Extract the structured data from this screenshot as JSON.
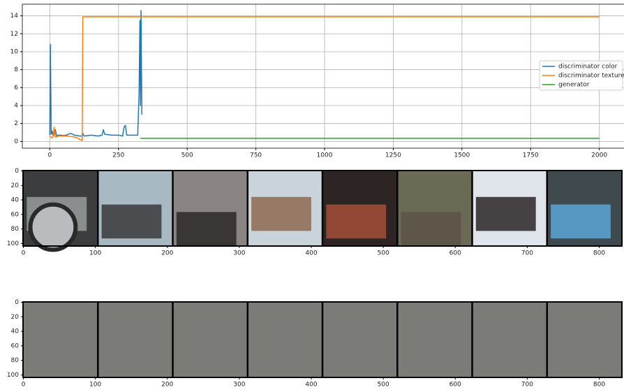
{
  "chart_data": [
    {
      "type": "line",
      "x": [
        0,
        2,
        5,
        8,
        12,
        16,
        20,
        25,
        30,
        40,
        50,
        60,
        75,
        90,
        100,
        110,
        118,
        120,
        125,
        150,
        175,
        190,
        195,
        200,
        225,
        250,
        265,
        270,
        275,
        280,
        300,
        320,
        325,
        328,
        330,
        332,
        335,
        340,
        500,
        1000,
        1500,
        2000
      ],
      "series": [
        {
          "name": "discriminator color",
          "color": "#1f77b4",
          "values": [
            0.7,
            10.8,
            0.8,
            1.2,
            0.6,
            0.9,
            1.3,
            0.6,
            0.7,
            0.7,
            0.65,
            0.7,
            0.9,
            0.7,
            0.65,
            0.6,
            0.6,
            0.9,
            0.6,
            0.7,
            0.6,
            0.7,
            1.3,
            0.8,
            0.7,
            0.7,
            0.6,
            1.6,
            1.8,
            0.7,
            0.7,
            0.7,
            5.5,
            13.5,
            4,
            14.6,
            3,
            null,
            null,
            null,
            null,
            null
          ]
        },
        {
          "name": "discriminator texture",
          "color": "#ff7f0e",
          "values": [
            0.6,
            0.5,
            0.5,
            0.4,
            0.5,
            1.6,
            0.5,
            0.5,
            0.6,
            0.6,
            0.6,
            0.6,
            0.55,
            0.5,
            0.4,
            0.2,
            0.1,
            13.9,
            13.9,
            13.9,
            13.9,
            13.9,
            13.9,
            13.9,
            13.9,
            13.9,
            13.9,
            13.9,
            13.9,
            13.9,
            13.9,
            13.9,
            13.9,
            13.9,
            13.9,
            13.9,
            13.9,
            13.9,
            13.9,
            13.9,
            13.9,
            13.9
          ]
        },
        {
          "name": "generator",
          "color": "#2ca02c",
          "values": [
            null,
            null,
            null,
            null,
            null,
            null,
            null,
            null,
            null,
            null,
            null,
            null,
            null,
            null,
            null,
            null,
            null,
            null,
            null,
            null,
            null,
            null,
            null,
            null,
            null,
            null,
            null,
            null,
            null,
            null,
            null,
            null,
            null,
            null,
            0.35,
            0.35,
            0.35,
            0.35,
            0.35,
            0.35,
            0.35,
            0.35
          ]
        }
      ],
      "xlim": [
        -100,
        2100
      ],
      "ylim": [
        -0.75,
        15.3
      ],
      "xticks": [
        0,
        250,
        500,
        750,
        1000,
        1250,
        1500,
        1750,
        2000
      ],
      "yticks": [
        0,
        2,
        4,
        6,
        8,
        10,
        12,
        14
      ],
      "grid": true,
      "legend": "center right"
    },
    {
      "type": "image",
      "xlim": [
        -0.5,
        831.5
      ],
      "ylim": [
        103.5,
        -0.5
      ],
      "xticks": [
        0,
        100,
        200,
        300,
        400,
        500,
        600,
        700,
        800
      ],
      "yticks": [
        0,
        20,
        40,
        60,
        80,
        100
      ]
    },
    {
      "type": "image",
      "xlim": [
        -0.5,
        831.5
      ],
      "ylim": [
        103.5,
        -0.5
      ],
      "xticks": [
        0,
        100,
        200,
        300,
        400,
        500,
        600,
        700,
        800
      ],
      "yticks": [
        0,
        20,
        40,
        60,
        80,
        100
      ]
    }
  ]
}
